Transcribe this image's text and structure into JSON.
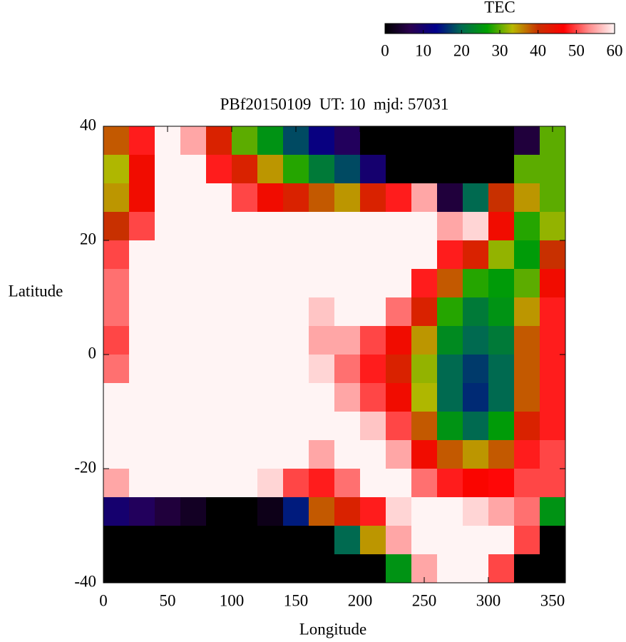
{
  "chart_data": {
    "type": "heatmap",
    "title": "PBf20150109  UT: 10  mjd: 57031",
    "xlabel": "Longitude",
    "ylabel": "Latitude",
    "colorbar_label": "TEC",
    "xlim": [
      0,
      360
    ],
    "xticks": [
      0,
      50,
      100,
      150,
      200,
      250,
      300,
      350
    ],
    "ylim": [
      -40,
      40
    ],
    "yticks": [
      -40,
      -20,
      0,
      20,
      40
    ],
    "zlim": [
      0,
      60
    ],
    "zticks": [
      0,
      10,
      20,
      30,
      40,
      50,
      60
    ],
    "colors": [
      "#000000",
      "#2a0050",
      "#00008c",
      "#006a50",
      "#00a000",
      "#b8b800",
      "#c83000",
      "#ff0000",
      "#ff8c8c",
      "#fff4f4"
    ],
    "z": [
      [
        38,
        48,
        60,
        55,
        42,
        30,
        25,
        18,
        12,
        8,
        0,
        0,
        0,
        0,
        0,
        0,
        5,
        30
      ],
      [
        33,
        45,
        60,
        60,
        48,
        42,
        35,
        28,
        22,
        18,
        10,
        0,
        0,
        0,
        0,
        0,
        30,
        30
      ],
      [
        35,
        45,
        60,
        60,
        60,
        50,
        45,
        42,
        38,
        35,
        42,
        48,
        55,
        5,
        20,
        40,
        35,
        30
      ],
      [
        40,
        50,
        60,
        60,
        60,
        60,
        60,
        60,
        60,
        60,
        60,
        60,
        60,
        55,
        58,
        45,
        28,
        32
      ],
      [
        50,
        60,
        60,
        60,
        60,
        60,
        60,
        60,
        60,
        60,
        60,
        60,
        60,
        48,
        42,
        32,
        26,
        40
      ],
      [
        52,
        60,
        60,
        60,
        60,
        60,
        60,
        60,
        60,
        60,
        60,
        60,
        48,
        38,
        28,
        26,
        30,
        45
      ],
      [
        52,
        60,
        60,
        60,
        60,
        60,
        60,
        60,
        57,
        60,
        60,
        52,
        42,
        28,
        22,
        25,
        35,
        48
      ],
      [
        50,
        60,
        60,
        60,
        60,
        60,
        60,
        60,
        55,
        55,
        50,
        45,
        35,
        24,
        20,
        22,
        38,
        48
      ],
      [
        52,
        60,
        60,
        60,
        60,
        60,
        60,
        60,
        58,
        52,
        48,
        42,
        32,
        20,
        17,
        20,
        38,
        48
      ],
      [
        60,
        60,
        60,
        60,
        60,
        60,
        60,
        60,
        60,
        55,
        50,
        45,
        33,
        20,
        16,
        20,
        38,
        48
      ],
      [
        60,
        60,
        60,
        60,
        60,
        60,
        60,
        60,
        60,
        60,
        57,
        50,
        38,
        25,
        20,
        26,
        42,
        48
      ],
      [
        60,
        60,
        60,
        60,
        60,
        60,
        60,
        60,
        55,
        60,
        60,
        55,
        45,
        38,
        35,
        38,
        48,
        50
      ],
      [
        55,
        60,
        60,
        60,
        60,
        60,
        58,
        50,
        48,
        52,
        60,
        60,
        52,
        48,
        46,
        47,
        50,
        50
      ],
      [
        10,
        8,
        5,
        3,
        0,
        0,
        2,
        15,
        38,
        42,
        48,
        58,
        60,
        60,
        58,
        55,
        52,
        25
      ],
      [
        0,
        0,
        0,
        0,
        0,
        0,
        0,
        0,
        0,
        20,
        35,
        55,
        60,
        60,
        60,
        60,
        50,
        0
      ],
      [
        0,
        0,
        0,
        0,
        0,
        0,
        0,
        0,
        0,
        0,
        0,
        25,
        55,
        60,
        60,
        50,
        0,
        0
      ]
    ]
  }
}
